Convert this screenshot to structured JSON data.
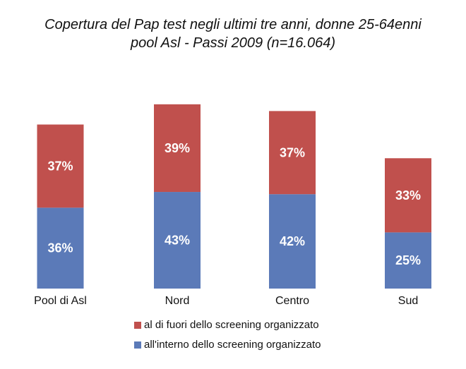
{
  "chart_data": {
    "type": "bar",
    "stacked": true,
    "title": "Copertura del Pap test negli ultimi tre anni, donne 25-64enni",
    "subtitle": "pool Asl - Passi 2009 (n=16.064)",
    "categories": [
      "Pool di Asl",
      "Nord",
      "Centro",
      "Sud"
    ],
    "series": [
      {
        "name": "all'interno dello screening organizzato",
        "values": [
          36,
          43,
          42,
          25
        ],
        "color": "#5B7AB8"
      },
      {
        "name": "al di fuori dello screening organizzato",
        "values": [
          37,
          39,
          37,
          33
        ],
        "color": "#C0504D"
      }
    ],
    "unit": "%",
    "ylim": [
      0,
      100
    ],
    "grid": false,
    "legend_position": "bottom"
  }
}
